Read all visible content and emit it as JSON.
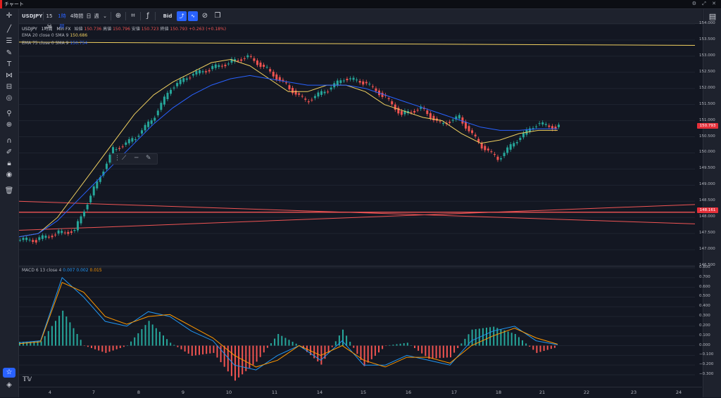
{
  "window": {
    "title": "チャート",
    "controls": "⚙ ⤢ ✕"
  },
  "toolbar": {
    "symbol": "USDJPY",
    "intervals": [
      "15分",
      "1時間",
      "4時間",
      "日",
      "週"
    ],
    "selected_interval": "1時間",
    "bid_label": "Bid"
  },
  "legend": {
    "symbol": "USDJPY",
    "interval": "1時間",
    "source": "Min FX",
    "open_label": "始値",
    "open": "150.736",
    "high_label": "高値",
    "high": "150.796",
    "low_label": "安値",
    "low": "150.723",
    "close_label": "終値",
    "close": "150.793",
    "change": "+0.263 (+0.18%)",
    "ema20": "EMA 20 close 0 SMA 9",
    "ema20_value": "150.686",
    "ema75": "EMA 75 close 0 SMA 9",
    "ema75_value": "150.754",
    "macd": "MACD 6 13 close 4",
    "macd_v1": "0.007",
    "macd_v2": "0.002",
    "macd_v3": "0.015"
  },
  "price_axis": [
    "154.000",
    "153.500",
    "153.000",
    "152.500",
    "152.000",
    "151.500",
    "151.000",
    "150.500",
    "150.000",
    "149.500",
    "149.000",
    "148.500",
    "148.000",
    "147.500",
    "147.000",
    "146.500"
  ],
  "macd_axis": [
    "0.800",
    "0.700",
    "0.600",
    "0.500",
    "0.400",
    "0.300",
    "0.200",
    "0.100",
    "0.000",
    "−0.100",
    "−0.200",
    "−0.300"
  ],
  "current_price_badge": "150.793",
  "line_price_badge": "148.161",
  "colors": {
    "up": "#26a69a",
    "down": "#ef5350",
    "ema20": "#f0d060",
    "ema75": "#2962ff",
    "hline": "#f05454",
    "badge": "#e5303a"
  },
  "chart_data": {
    "type": "line",
    "x_labels": [
      "4",
      "7",
      "8",
      "9",
      "10",
      "11",
      "14",
      "15",
      "16",
      "17",
      "18",
      "21",
      "22",
      "23",
      "24"
    ],
    "price_close": [
      147.3,
      147.5,
      147.6,
      148.9,
      150.1,
      150.4,
      151.0,
      152.0,
      152.4,
      152.6,
      152.8,
      153.0,
      152.6,
      152.1,
      151.6,
      151.9,
      152.3,
      152.2,
      151.8,
      151.2,
      151.4,
      150.9,
      151.1,
      150.3,
      149.8,
      150.4,
      150.9,
      150.8,
      150.8
    ],
    "ema20": [
      147.4,
      147.5,
      148.0,
      148.8,
      149.6,
      150.4,
      151.2,
      151.8,
      152.2,
      152.5,
      152.8,
      152.9,
      152.7,
      152.3,
      151.9,
      151.9,
      152.1,
      152.1,
      151.9,
      151.5,
      151.3,
      151.1,
      151.0,
      150.6,
      150.3,
      150.4,
      150.6,
      150.7,
      150.7
    ],
    "ema75": [
      147.4,
      147.5,
      147.9,
      148.5,
      149.1,
      149.7,
      150.3,
      150.9,
      151.4,
      151.8,
      152.1,
      152.3,
      152.4,
      152.3,
      152.2,
      152.1,
      152.1,
      152.1,
      152.0,
      151.8,
      151.6,
      151.4,
      151.2,
      151.0,
      150.8,
      150.7,
      150.7,
      150.75,
      150.75
    ],
    "macd_line": [
      0.03,
      0.05,
      0.7,
      0.5,
      0.25,
      0.2,
      0.35,
      0.3,
      0.15,
      0.05,
      -0.2,
      -0.25,
      -0.1,
      0.0,
      -0.15,
      0.05,
      -0.2,
      -0.2,
      -0.1,
      -0.15,
      -0.2,
      0.05,
      0.15,
      0.2,
      0.05,
      0.01
    ],
    "signal_line": [
      0.02,
      0.04,
      0.65,
      0.55,
      0.3,
      0.22,
      0.3,
      0.32,
      0.2,
      0.08,
      -0.1,
      -0.22,
      -0.15,
      0.0,
      -0.1,
      0.0,
      -0.15,
      -0.22,
      -0.12,
      -0.12,
      -0.18,
      0.0,
      0.1,
      0.18,
      0.08,
      0.015
    ]
  }
}
